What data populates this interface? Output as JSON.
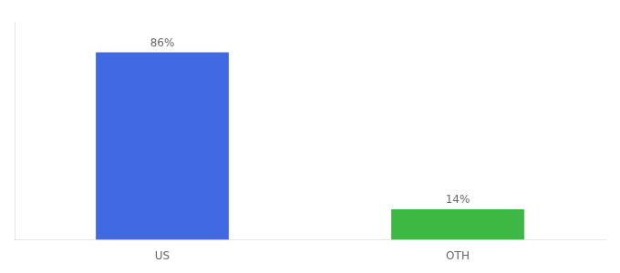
{
  "chart_data": {
    "type": "bar",
    "categories": [
      "US",
      "OTH"
    ],
    "values": [
      86,
      14
    ],
    "value_labels": [
      "86%",
      "14%"
    ],
    "colors": [
      "#4169e1",
      "#3cb843"
    ],
    "ylim": [
      0,
      100
    ],
    "grid": false,
    "data_labels": true,
    "tick_labels": "x"
  }
}
